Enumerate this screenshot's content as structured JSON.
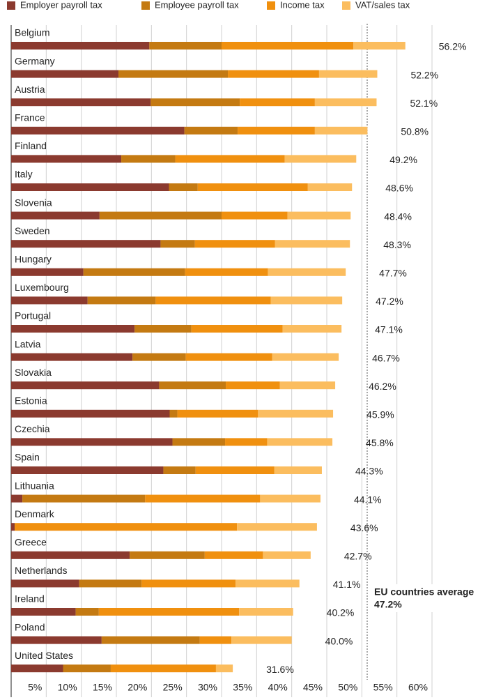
{
  "chart_data": {
    "type": "stacked-bar-horizontal",
    "series": [
      {
        "name": "Employer payroll tax",
        "color": "#8b3a2f",
        "values": [
          19.7,
          15.3,
          19.9,
          24.7,
          15.7,
          22.5,
          12.6,
          21.3,
          10.3,
          10.9,
          17.6,
          17.3,
          21.1,
          22.6,
          23.0,
          21.7,
          1.6,
          0.5,
          16.9,
          9.7,
          9.2,
          12.9,
          7.4
        ]
      },
      {
        "name": "Employee payroll tax",
        "color": "#c47a12",
        "values": [
          10.3,
          15.6,
          12.7,
          7.6,
          7.7,
          4.1,
          17.4,
          4.9,
          14.5,
          9.7,
          8.1,
          7.6,
          9.5,
          1.1,
          7.5,
          4.6,
          17.5,
          0,
          10.7,
          8.9,
          3.3,
          14.0,
          6.8
        ]
      },
      {
        "name": "Income tax",
        "color": "#f0900f",
        "values": [
          18.8,
          13.0,
          10.7,
          11.0,
          15.6,
          15.7,
          9.4,
          11.4,
          11.8,
          16.4,
          13.0,
          12.3,
          7.7,
          11.5,
          6.0,
          11.2,
          16.4,
          31.7,
          8.3,
          13.4,
          20.0,
          4.5,
          15.0
        ]
      },
      {
        "name": "VAT/sales tax",
        "color": "#fbbd5f",
        "values": [
          7.4,
          8.3,
          8.8,
          7.5,
          10.2,
          6.3,
          9.0,
          10.7,
          11.1,
          10.2,
          8.4,
          9.5,
          7.9,
          10.7,
          9.3,
          6.8,
          8.6,
          11.4,
          6.8,
          9.1,
          7.7,
          8.6,
          2.4
        ]
      }
    ],
    "categories": [
      "Belgium",
      "Germany",
      "Austria",
      "France",
      "Finland",
      "Italy",
      "Slovenia",
      "Sweden",
      "Hungary",
      "Luxembourg",
      "Portugal",
      "Latvia",
      "Slovakia",
      "Estonia",
      "Czechia",
      "Spain",
      "Lithuania",
      "Denmark",
      "Greece",
      "Netherlands",
      "Ireland",
      "Poland",
      "United States"
    ],
    "total_labels": [
      "56.2%",
      "52.2%",
      "52.1%",
      "50.8%",
      "49.2%",
      "48.6%",
      "48.4%",
      "48.3%",
      "47.7%",
      "47.2%",
      "47.1%",
      "46.7%",
      "46.2%",
      "45.9%",
      "45.8%",
      "44.3%",
      "44.1%",
      "43.6%",
      "42.7%",
      "41.1%",
      "40.2%",
      "40.0%",
      "31.6%"
    ],
    "xlim": [
      0,
      60
    ],
    "xticks": [
      {
        "value": 5,
        "label": "5%"
      },
      {
        "value": 10,
        "label": "10%"
      },
      {
        "value": 15,
        "label": "15%"
      },
      {
        "value": 20,
        "label": "20%"
      },
      {
        "value": 25,
        "label": "25%"
      },
      {
        "value": 30,
        "label": "30%"
      },
      {
        "value": 35,
        "label": "35%"
      },
      {
        "value": 40,
        "label": "40%"
      },
      {
        "value": 45,
        "label": "45%"
      },
      {
        "value": 50,
        "label": "50%"
      },
      {
        "value": 55,
        "label": "55%"
      },
      {
        "value": 60,
        "label": "60%"
      }
    ],
    "grid": true,
    "annotation": {
      "text": "EU countries average",
      "value_label": "47.2%"
    }
  }
}
